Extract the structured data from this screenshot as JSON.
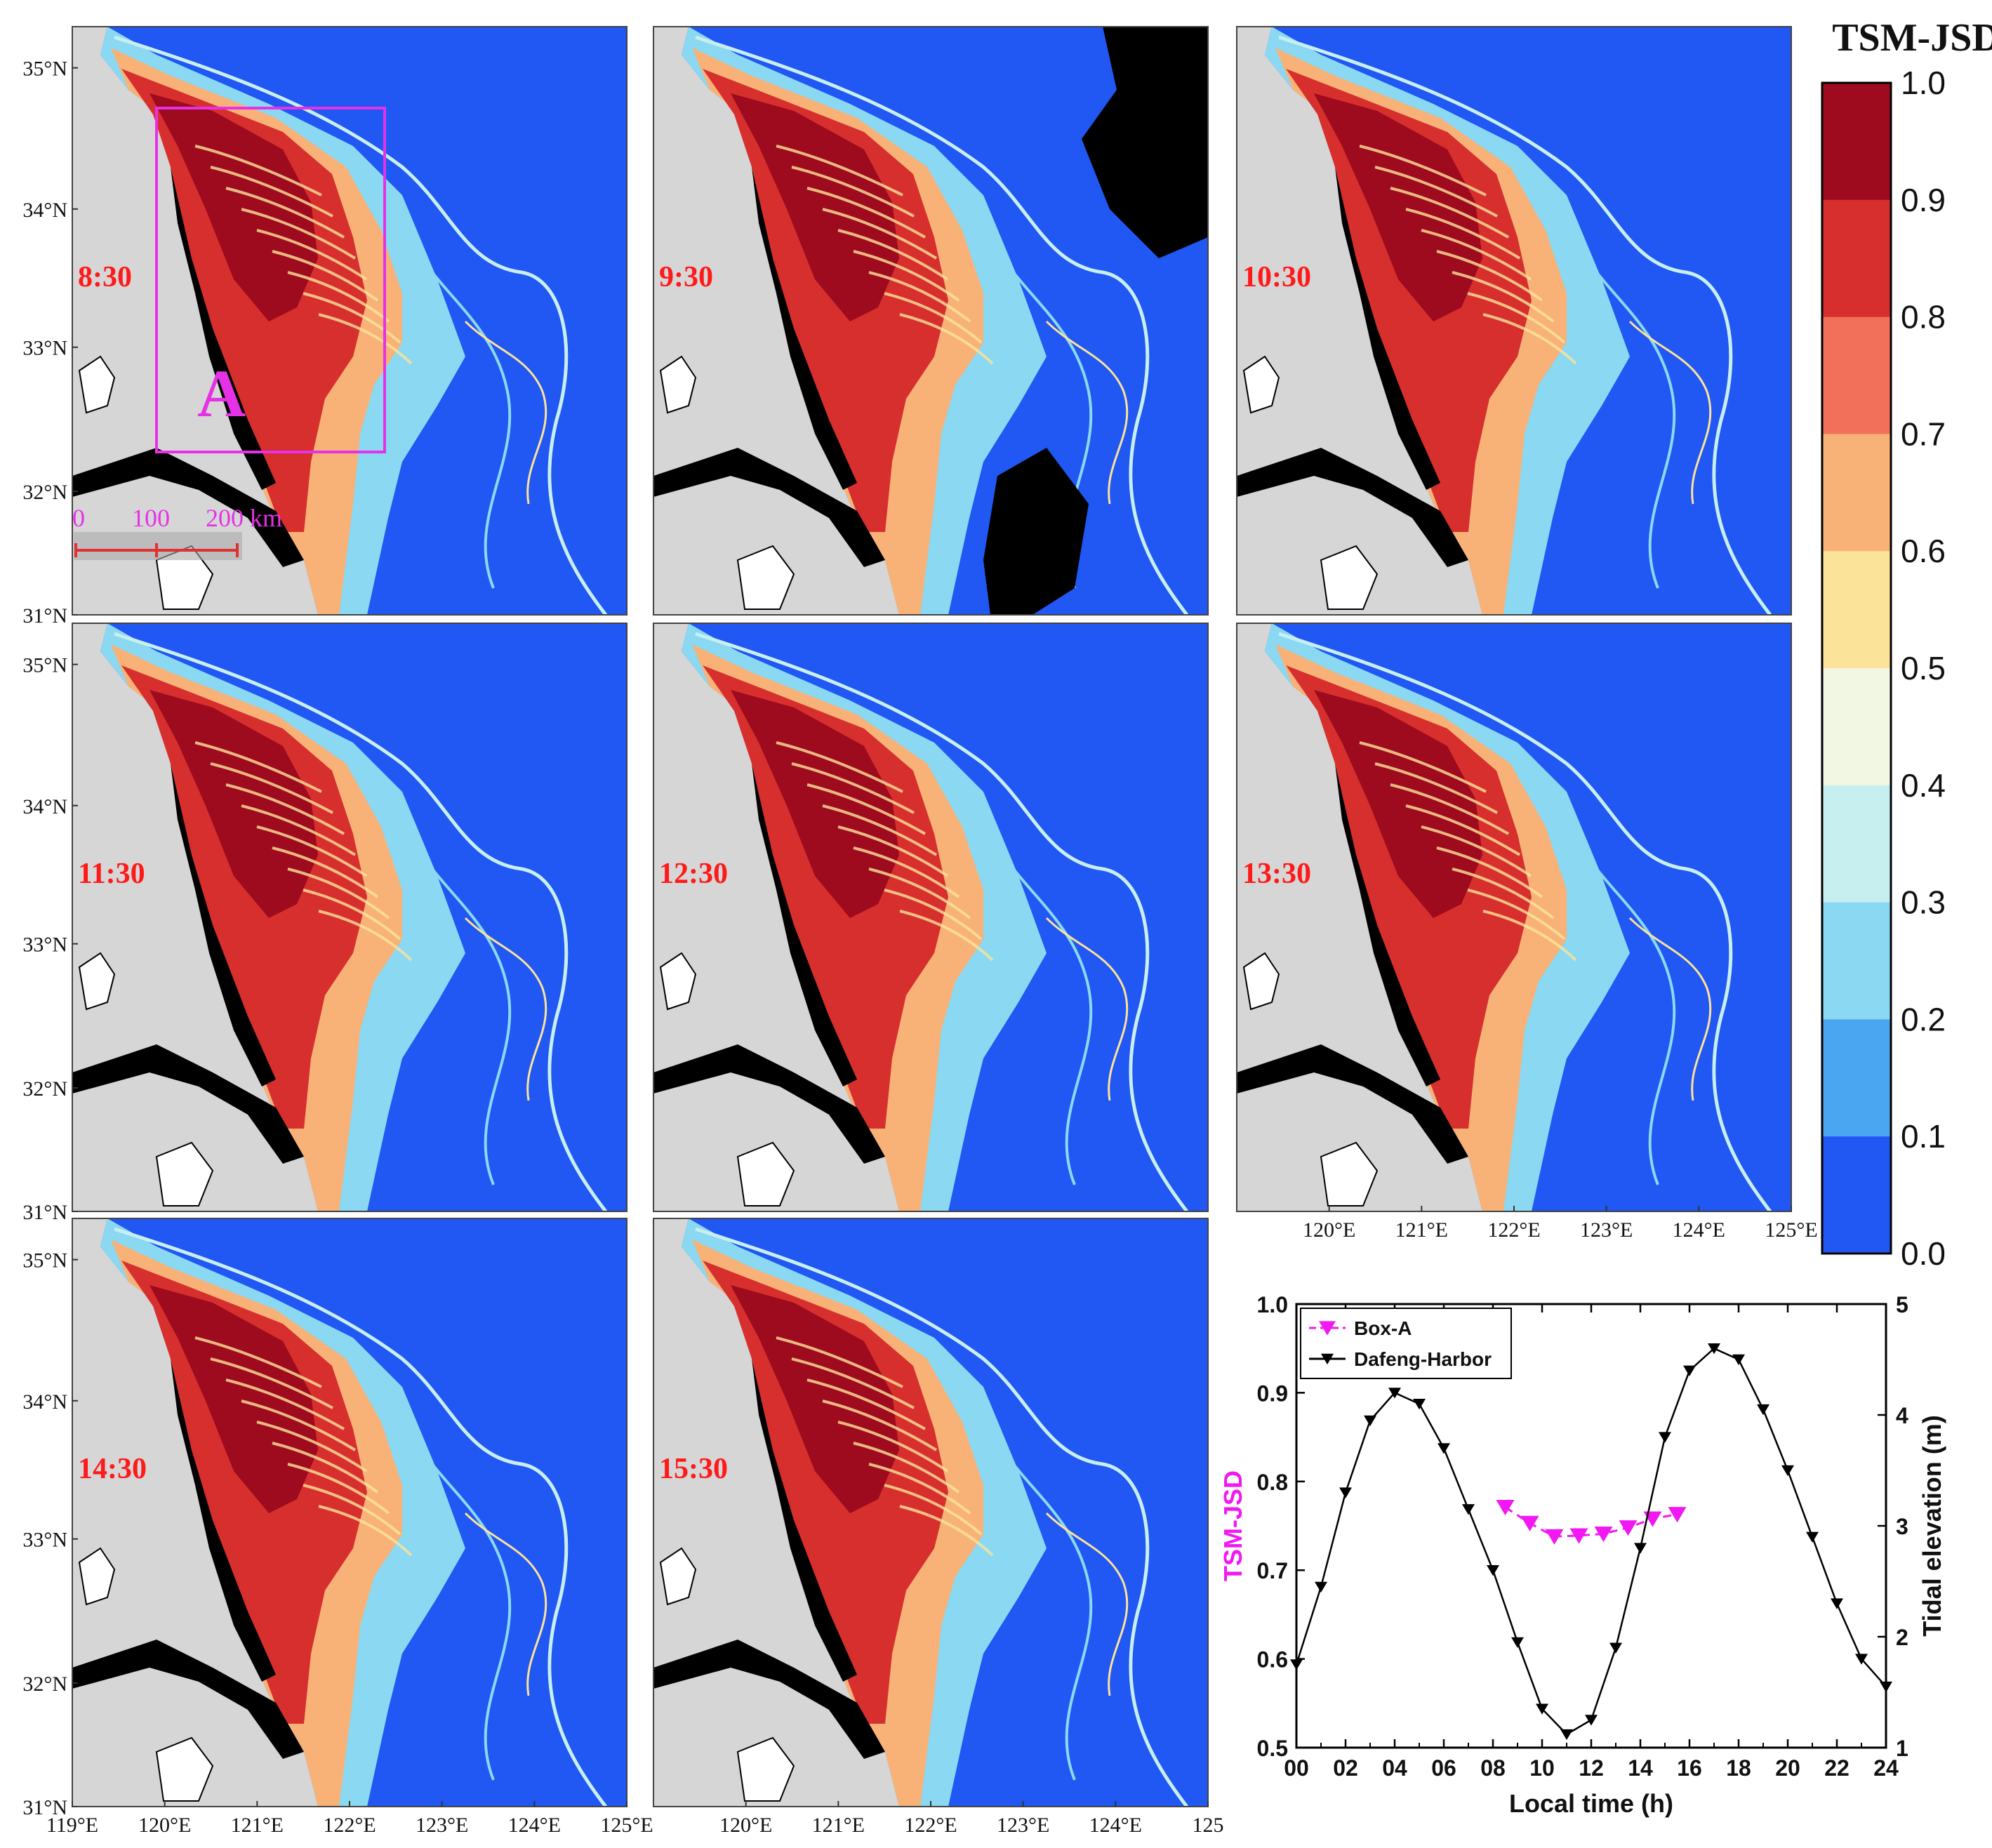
{
  "colorbar": {
    "title": "TSM-JSD",
    "ticks": [
      "1.0",
      "0.9",
      "0.8",
      "0.7",
      "0.6",
      "0.5",
      "0.4",
      "0.3",
      "0.2",
      "0.1",
      "0.0"
    ],
    "colors": [
      "#9e0a1e",
      "#d62f2e",
      "#f2705a",
      "#f8b277",
      "#fbe39a",
      "#f2f7e3",
      "#c7efef",
      "#8ad8f2",
      "#4aa6f0",
      "#2157f2"
    ]
  },
  "panels": [
    {
      "time": "8:30"
    },
    {
      "time": "9:30"
    },
    {
      "time": "10:30"
    },
    {
      "time": "11:30"
    },
    {
      "time": "12:30"
    },
    {
      "time": "13:30"
    },
    {
      "time": "14:30"
    },
    {
      "time": "15:30"
    }
  ],
  "map_axes": {
    "lat_ticks": [
      "35°N",
      "34°N",
      "33°N",
      "32°N",
      "31°N"
    ],
    "lon_ticks": [
      "119°E",
      "120°E",
      "121°E",
      "122°E",
      "123°E",
      "124°E",
      "125°E"
    ],
    "lon_ticks_mid": [
      "120°E",
      "121°E",
      "122°E",
      "123°E",
      "124°E",
      "125"
    ],
    "lon_ticks_right": [
      "120°E",
      "121°E",
      "122°E",
      "123°E",
      "124°E",
      "125°E"
    ]
  },
  "box_a": {
    "label": "A",
    "color": "#e632e6"
  },
  "scale_bar": {
    "labels": [
      "0",
      "100",
      "200 km"
    ],
    "color": "#e03030",
    "label_color": "#e632e6"
  },
  "chart_data": {
    "type": "line",
    "xlabel": "Local time (h)",
    "ylabel_left": "TSM-JSD",
    "ylabel_right": "Tidal elevation (m)",
    "xlim": [
      0,
      24
    ],
    "ylim_left": [
      0.5,
      1.0
    ],
    "ylim_right": [
      1,
      5
    ],
    "x_ticks": [
      "00",
      "02",
      "04",
      "06",
      "08",
      "10",
      "12",
      "14",
      "16",
      "18",
      "20",
      "22",
      "24"
    ],
    "y_left_ticks": [
      "0.5",
      "0.6",
      "0.7",
      "0.8",
      "0.9",
      "1.0"
    ],
    "y_right_ticks": [
      "1",
      "2",
      "3",
      "4",
      "5"
    ],
    "legend_position": "top-left",
    "series": [
      {
        "name": "Box-A",
        "axis": "left",
        "color": "#f218f2",
        "x": [
          8.5,
          9.5,
          10.5,
          11.5,
          12.5,
          13.5,
          14.5,
          15.5
        ],
        "y": [
          0.771,
          0.753,
          0.738,
          0.739,
          0.741,
          0.748,
          0.758,
          0.763
        ]
      },
      {
        "name": "Dafeng-Harbor",
        "axis": "right",
        "color": "#000000",
        "x": [
          0,
          1,
          2,
          3,
          4,
          5,
          6,
          7,
          8,
          9,
          10,
          11,
          12,
          13,
          14,
          15,
          16,
          17,
          18,
          19,
          20,
          21,
          22,
          23,
          24
        ],
        "y": [
          1.75,
          2.45,
          3.3,
          3.95,
          4.2,
          4.1,
          3.7,
          3.15,
          2.6,
          1.95,
          1.35,
          1.12,
          1.25,
          1.9,
          2.8,
          3.8,
          4.4,
          4.6,
          4.5,
          4.05,
          3.5,
          2.9,
          2.3,
          1.8,
          1.55
        ]
      }
    ]
  }
}
